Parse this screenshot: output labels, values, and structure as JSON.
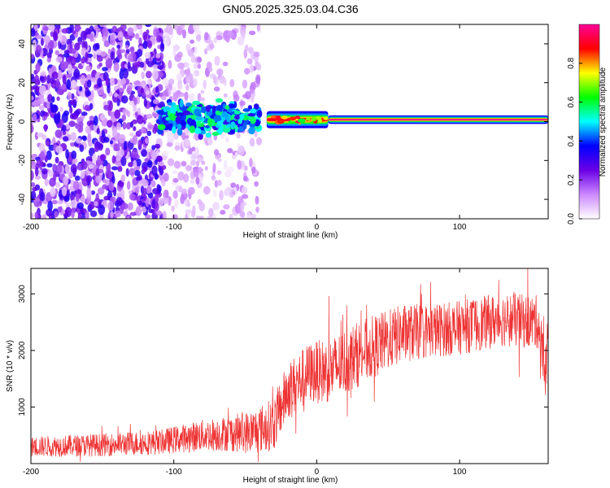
{
  "title": "GN05.2025.325.03.04.C36",
  "chart_data": [
    {
      "type": "heatmap",
      "name": "spectrogram",
      "xlabel": "Height of straight line (km)",
      "ylabel": "Frequency (Hz)",
      "xlim": [
        -200,
        162
      ],
      "ylim": [
        -50,
        50
      ],
      "xticks": [
        -200,
        -100,
        0,
        100
      ],
      "yticks": [
        -40,
        -20,
        0,
        20,
        40
      ],
      "colorbar": {
        "label": "Normalized spectral amplitude",
        "range": [
          0,
          1
        ],
        "ticks": [
          "0.0",
          "0.2",
          "0.4",
          "0.6",
          "0.8"
        ],
        "colors": [
          "#ffffff",
          "#cc88ff",
          "#6a00e6",
          "#0000ff",
          "#00ffff",
          "#00ff00",
          "#ffff00",
          "#ff0000",
          "#ff0099"
        ]
      },
      "regions": [
        {
          "x": [
            -200,
            -107
          ],
          "freq_spread": 50,
          "amplitude": [
            0.05,
            0.35
          ],
          "description_level": "broadband noise"
        },
        {
          "x": [
            -107,
            -40
          ],
          "freq_spread": 50,
          "amplitude": [
            0.02,
            0.15
          ],
          "description_level": "sparse noise"
        },
        {
          "x": [
            -110,
            -40
          ],
          "freq_spread": 8,
          "amplitude": [
            0.3,
            0.6
          ],
          "description_level": "emerging signal"
        },
        {
          "x": [
            -35,
            8
          ],
          "freq_spread": 2,
          "amplitude": [
            0.6,
            0.9
          ],
          "description_level": "locked carrier"
        },
        {
          "x": [
            8,
            162
          ],
          "freq_spread": 1,
          "amplitude": [
            0.85,
            1.0
          ],
          "description_level": "strong carrier"
        }
      ]
    },
    {
      "type": "line",
      "name": "snr",
      "xlabel": "Height of straight line (km)",
      "ylabel": "SNR (10 * v/v)",
      "xlim": [
        -200,
        162
      ],
      "ylim": [
        0,
        3450
      ],
      "xticks": [
        -200,
        -100,
        0,
        100
      ],
      "yticks": [
        1000,
        2000,
        3000
      ],
      "color": "#ee3333",
      "trend": [
        {
          "x": -200,
          "y": 300
        },
        {
          "x": -150,
          "y": 330
        },
        {
          "x": -110,
          "y": 380
        },
        {
          "x": -80,
          "y": 500
        },
        {
          "x": -45,
          "y": 560
        },
        {
          "x": -30,
          "y": 700
        },
        {
          "x": -20,
          "y": 1300
        },
        {
          "x": -5,
          "y": 1600
        },
        {
          "x": 10,
          "y": 1650
        },
        {
          "x": 30,
          "y": 1950
        },
        {
          "x": 60,
          "y": 2300
        },
        {
          "x": 100,
          "y": 2400
        },
        {
          "x": 130,
          "y": 2550
        },
        {
          "x": 155,
          "y": 2500
        },
        {
          "x": 160,
          "y": 1600
        },
        {
          "x": 162,
          "y": 2300
        }
      ],
      "noise_amplitude": [
        {
          "x": -200,
          "a": 180
        },
        {
          "x": -110,
          "a": 220
        },
        {
          "x": -60,
          "a": 320
        },
        {
          "x": -25,
          "a": 500
        },
        {
          "x": 20,
          "a": 600
        },
        {
          "x": 80,
          "a": 480
        },
        {
          "x": 162,
          "a": 480
        }
      ]
    }
  ]
}
